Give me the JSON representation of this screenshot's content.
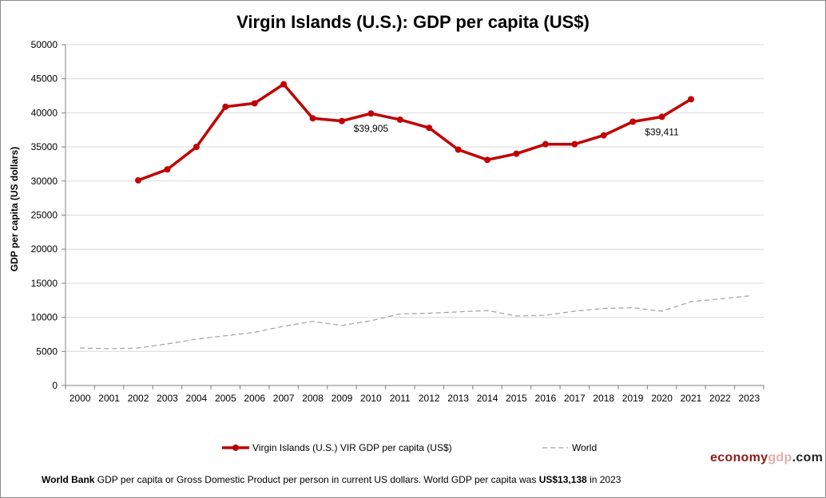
{
  "chart_data": {
    "type": "line",
    "title": "Virgin Islands (U.S.): GDP per capita (US$)",
    "ylabel": "GDP per capita (US dollars)",
    "xlabel": "",
    "ylim": [
      0,
      50000
    ],
    "yticks": [
      0,
      5000,
      10000,
      15000,
      20000,
      25000,
      30000,
      35000,
      40000,
      45000,
      50000
    ],
    "categories": [
      "2000",
      "2001",
      "2002",
      "2003",
      "2004",
      "2005",
      "2006",
      "2007",
      "2008",
      "2009",
      "2010",
      "2011",
      "2012",
      "2013",
      "2014",
      "2015",
      "2016",
      "2017",
      "2018",
      "2019",
      "2020",
      "2021",
      "2022",
      "2023"
    ],
    "grid": true,
    "legend_position": "bottom",
    "series": [
      {
        "name": "Virgin Islands (U.S.) VIR GDP per capita (US$)",
        "color": "#c00000",
        "style": "solid-with-markers",
        "values": [
          null,
          null,
          30100,
          31700,
          35000,
          40900,
          41400,
          44200,
          39200,
          38800,
          39905,
          39000,
          37800,
          34600,
          33100,
          34000,
          35400,
          35400,
          36700,
          38700,
          39411,
          42000,
          null,
          null
        ]
      },
      {
        "name": "World",
        "color": "#a0a0a0",
        "style": "dashed",
        "values": [
          5500,
          5400,
          5500,
          6100,
          6800,
          7300,
          7800,
          8700,
          9400,
          8800,
          9500,
          10500,
          10600,
          10800,
          11000,
          10200,
          10300,
          10900,
          11300,
          11400,
          10900,
          12300,
          12700,
          13138
        ]
      }
    ],
    "annotations": [
      {
        "text": "$39,905",
        "series": 0,
        "category": "2010"
      },
      {
        "text": "$39,411",
        "series": 0,
        "category": "2020"
      }
    ]
  },
  "footer": {
    "source_label": "World Bank",
    "text": " GDP per capita or Gross Domestic Product per person in current US dollars.   World GDP per capita was ",
    "world_value": "US$13,138",
    "suffix": " in 2023"
  },
  "brand": {
    "part1": "economy",
    "part2": "gdp",
    "part3": ".com"
  }
}
